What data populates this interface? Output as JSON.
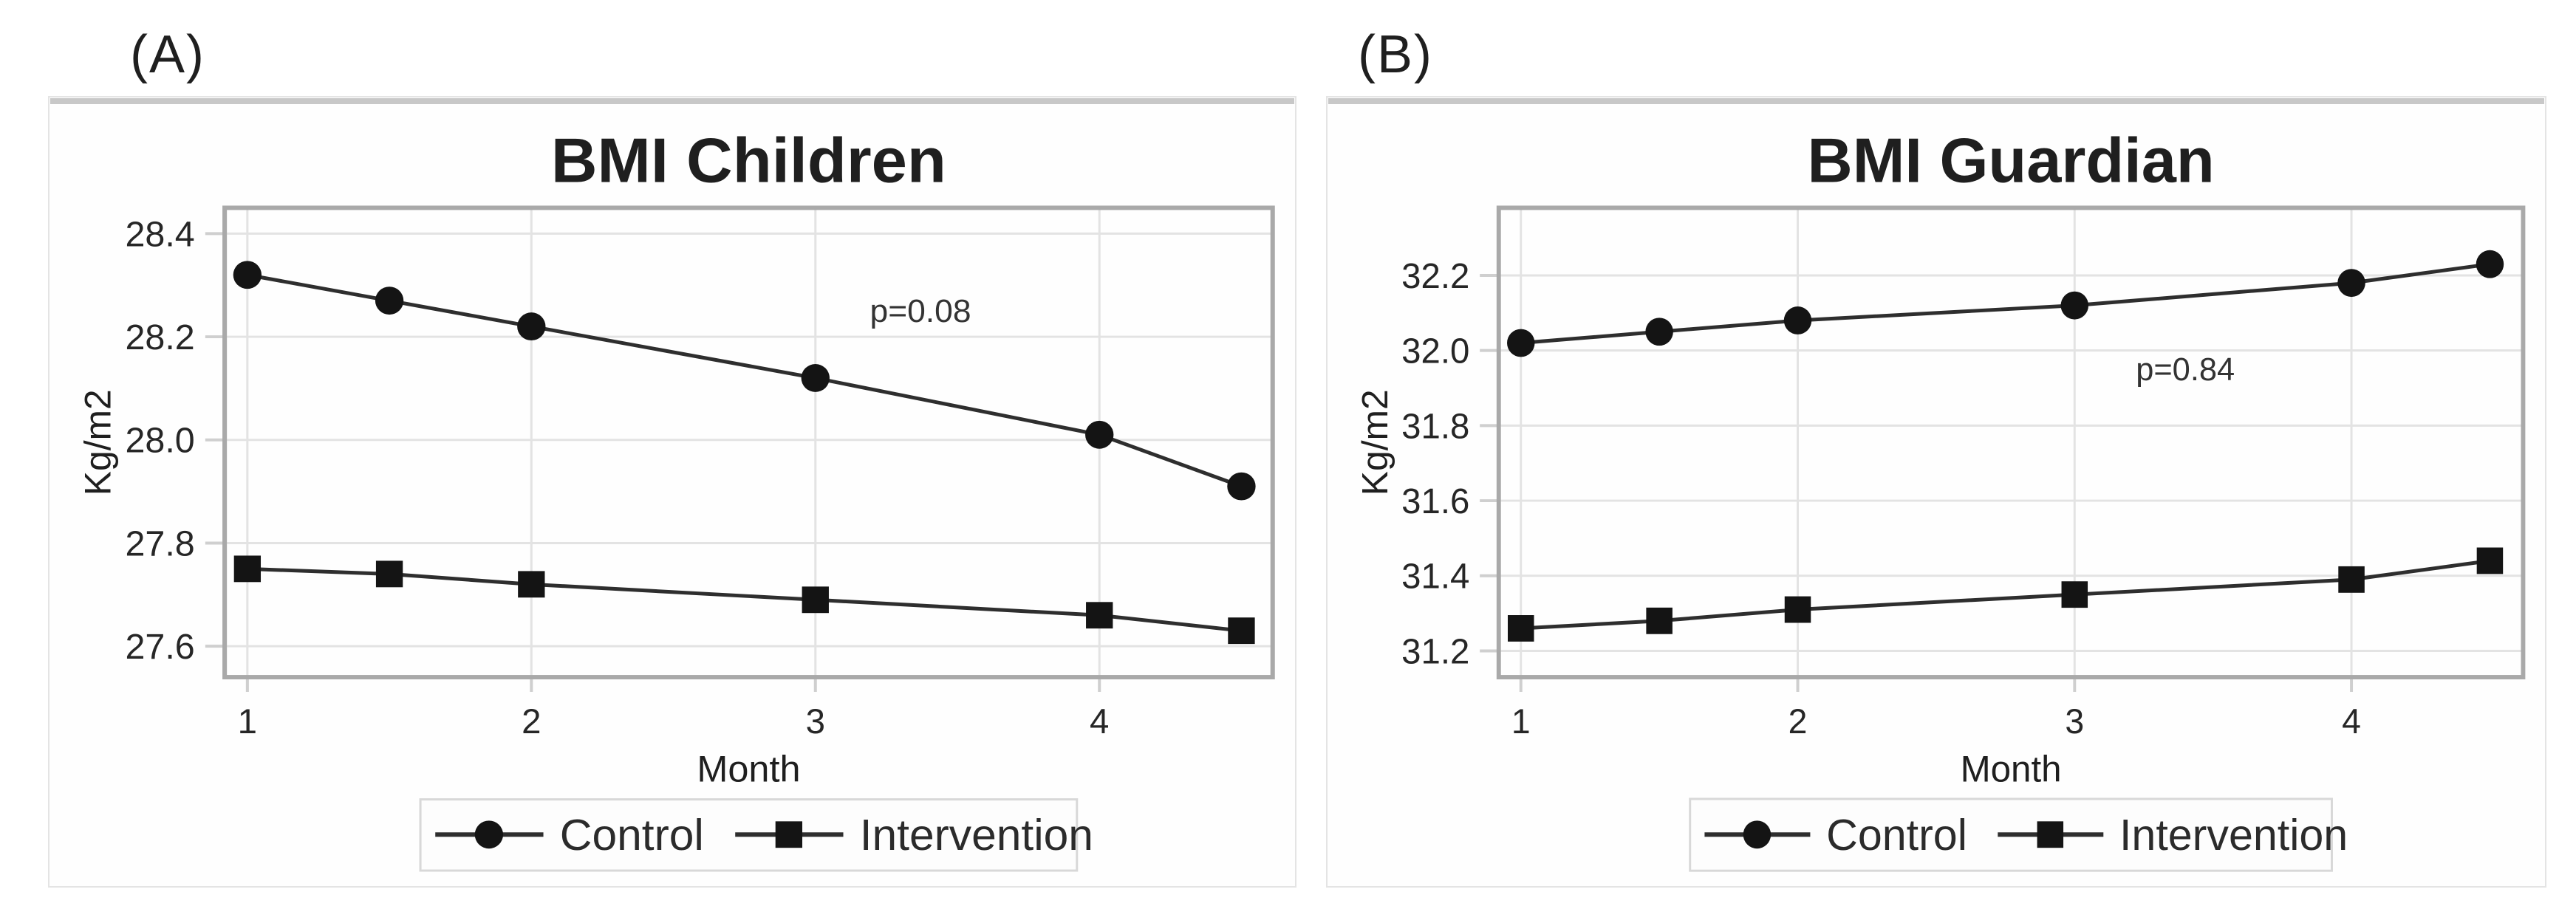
{
  "panels": [
    {
      "label": "(A)"
    },
    {
      "label": "(B)"
    }
  ],
  "colors": {
    "background": "#ffffff",
    "series_marker": "#141414",
    "series_line": "#2e2e2e",
    "grid": "#e3e3e3",
    "frame": "#a9a9a9",
    "tick": "#cfcfcf",
    "text": "#1f1f1f",
    "tick_text": "#262626",
    "panel_border": "#e4e4e4",
    "panel_top_strip": "#c8c8c8",
    "legend_border": "#d8d8d8",
    "legend_bg": "#fdfdfd"
  },
  "chart_data": [
    {
      "type": "line",
      "panel": "(A)",
      "title": "BMI Children",
      "xlabel": "Month",
      "ylabel": "Kg/m2",
      "grid": true,
      "legend_position": "bottom",
      "x": [
        1,
        1.5,
        2,
        3,
        4,
        4.5
      ],
      "xticks": [
        1,
        2,
        3,
        4
      ],
      "xtick_labels": [
        "1",
        "2",
        "3",
        "4"
      ],
      "xlim": [
        0.92,
        4.61
      ],
      "yticks": [
        27.6,
        27.8,
        28.0,
        28.2,
        28.4
      ],
      "ytick_labels": [
        "27.6",
        "27.8",
        "28.0",
        "28.2",
        "28.4"
      ],
      "ylim": [
        27.54,
        28.45
      ],
      "annotation": {
        "text": "p=0.08",
        "x": 3.37,
        "y": 28.25
      },
      "series": [
        {
          "name": "Control",
          "marker": "circle",
          "values": [
            28.32,
            28.27,
            28.22,
            28.12,
            28.01,
            27.91
          ]
        },
        {
          "name": "Intervention",
          "marker": "square",
          "values": [
            27.75,
            27.74,
            27.72,
            27.69,
            27.66,
            27.63
          ]
        }
      ]
    },
    {
      "type": "line",
      "panel": "(B)",
      "title": "BMI Guardian",
      "xlabel": "Month",
      "ylabel": "Kg/m2",
      "grid": true,
      "legend_position": "bottom",
      "x": [
        1,
        1.5,
        2,
        3,
        4,
        4.5
      ],
      "xticks": [
        1,
        2,
        3,
        4
      ],
      "xtick_labels": [
        "1",
        "2",
        "3",
        "4"
      ],
      "xlim": [
        0.92,
        4.62
      ],
      "yticks": [
        31.2,
        31.4,
        31.6,
        31.8,
        32.0,
        32.2
      ],
      "ytick_labels": [
        "31.2",
        "31.4",
        "31.6",
        "31.8",
        "32.0",
        "32.2"
      ],
      "ylim": [
        31.13,
        32.38
      ],
      "annotation": {
        "text": "p=0.84",
        "x": 3.4,
        "y": 31.95
      },
      "series": [
        {
          "name": "Control",
          "marker": "circle",
          "values": [
            32.02,
            32.05,
            32.08,
            32.12,
            32.18,
            32.23
          ]
        },
        {
          "name": "Intervention",
          "marker": "square",
          "values": [
            31.26,
            31.28,
            31.31,
            31.35,
            31.39,
            31.44
          ]
        }
      ]
    }
  ]
}
